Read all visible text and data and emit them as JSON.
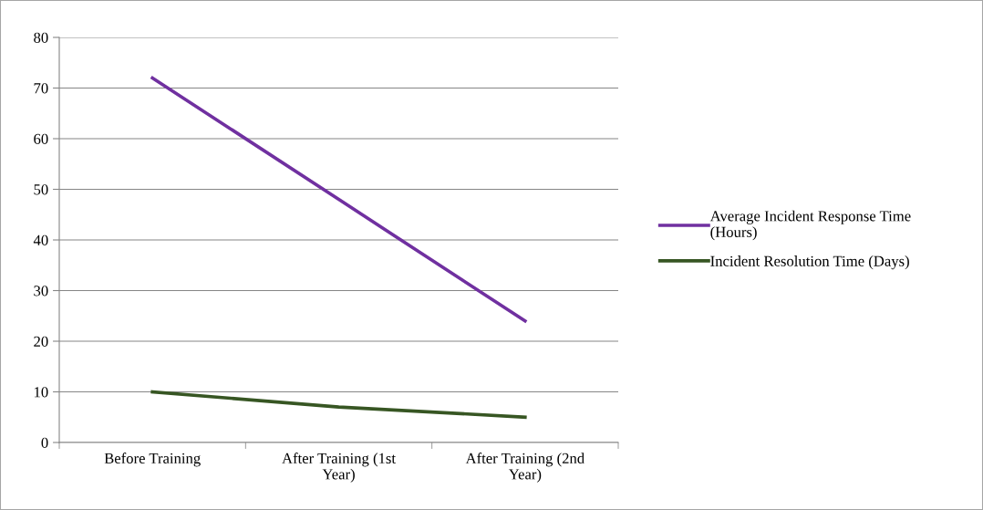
{
  "chart_data": {
    "type": "line",
    "categories": [
      "Before Training",
      "After Training (1st\nYear)",
      "After Training (2nd\nYear)"
    ],
    "series": [
      {
        "name": "Average Incident Response Time\n(Hours)",
        "color": "#7030a0",
        "values": [
          72,
          48,
          24
        ]
      },
      {
        "name": "Incident Resolution Time (Days)",
        "color": "#375623",
        "values": [
          10,
          7,
          5
        ]
      }
    ],
    "ylim": [
      0,
      80
    ],
    "yticks": [
      0,
      10,
      20,
      30,
      40,
      50,
      60,
      70,
      80
    ],
    "grid": "y",
    "legend": "right",
    "marker": "none",
    "line_style": "solid"
  }
}
